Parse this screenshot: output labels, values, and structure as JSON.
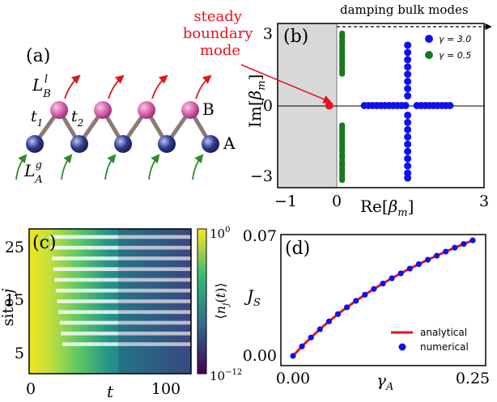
{
  "colors": {
    "red": "#e8121c",
    "blue": "#1010ee",
    "green": "#1a7a1a",
    "pink": "#d45aa8",
    "navy": "#2f3a8f",
    "bond": "#8a7b74",
    "arrow_red": "#d81b1b",
    "arrow_green": "#2e8b2e",
    "shade": "#d8d8d8"
  },
  "panel_a": {
    "label": "(a)",
    "loss_label": "L",
    "loss_sub": "B",
    "loss_sup": "l",
    "gain_label": "L",
    "gain_sub": "A",
    "gain_sup": "g",
    "t1_main": "t",
    "t1_sub": "1",
    "t2_main": "t",
    "t2_sub": "2",
    "site_b": "B",
    "site_a": "A"
  },
  "chart_data": [
    {
      "id": "b",
      "type": "scatter",
      "panel_label": "(b)",
      "xlabel": "Re[βm]",
      "ylabel": "Im[βm]",
      "xlim": [
        -1,
        3
      ],
      "ylim": [
        -3.4,
        3.4
      ],
      "xticks": [
        "−1",
        "0",
        "3"
      ],
      "yticks": [
        "3",
        "0",
        "−3"
      ],
      "legend": "top-right",
      "series": [
        {
          "name": "γ = 3.0",
          "color": "#1010ee",
          "points": [
            [
              0.68,
              0.0
            ],
            [
              0.76,
              0.0
            ],
            [
              0.84,
              0.0
            ],
            [
              0.92,
              0.0
            ],
            [
              1.0,
              0.0
            ],
            [
              1.08,
              0.0
            ],
            [
              1.16,
              0.0
            ],
            [
              1.24,
              0.0
            ],
            [
              1.32,
              0.0
            ],
            [
              1.4,
              0.0
            ],
            [
              1.48,
              0.0
            ],
            [
              1.7,
              0.0
            ],
            [
              1.78,
              0.0
            ],
            [
              1.86,
              0.0
            ],
            [
              1.94,
              0.0
            ],
            [
              2.02,
              0.0
            ],
            [
              2.1,
              0.0
            ],
            [
              2.18,
              0.0
            ],
            [
              2.26,
              0.0
            ],
            [
              2.34,
              0.0
            ],
            [
              1.52,
              2.5
            ],
            [
              1.52,
              2.2
            ],
            [
              1.52,
              1.9
            ],
            [
              1.52,
              1.6
            ],
            [
              1.52,
              1.3
            ],
            [
              1.52,
              1.0
            ],
            [
              1.52,
              0.7
            ],
            [
              1.52,
              0.4
            ],
            [
              1.52,
              -0.4
            ],
            [
              1.52,
              -0.7
            ],
            [
              1.52,
              -1.0
            ],
            [
              1.52,
              -1.3
            ],
            [
              1.52,
              -1.6
            ],
            [
              1.52,
              -1.9
            ],
            [
              1.52,
              -2.2
            ],
            [
              1.52,
              -2.5
            ],
            [
              1.52,
              -2.8
            ],
            [
              1.52,
              -3.0
            ]
          ]
        },
        {
          "name": "γ = 0.5",
          "color": "#1a7a1a",
          "points": [
            [
              0.25,
              2.9
            ],
            [
              0.25,
              2.6
            ],
            [
              0.25,
              2.3
            ],
            [
              0.25,
              2.0
            ],
            [
              0.25,
              1.7
            ],
            [
              0.25,
              1.4
            ],
            [
              0.25,
              -0.9
            ],
            [
              0.25,
              -1.2
            ],
            [
              0.25,
              -1.5
            ],
            [
              0.25,
              -1.8
            ],
            [
              0.25,
              -2.1
            ],
            [
              0.25,
              -2.4
            ],
            [
              0.25,
              -2.7
            ],
            [
              0.25,
              -3.0
            ]
          ]
        }
      ],
      "steady_point": [
        0.0,
        0.0
      ],
      "annotations": {
        "steady": [
          "steady",
          "boundary",
          "mode"
        ],
        "damping": "damping bulk modes"
      }
    },
    {
      "id": "c",
      "type": "heatmap",
      "panel_label": "(c)",
      "xlabel": "t",
      "ylabel": "site j",
      "xticks": [
        "0",
        "100"
      ],
      "yticks": [
        "25",
        "15",
        "5"
      ],
      "x_range": [
        0,
        120
      ],
      "y_range": [
        1,
        27
      ],
      "colorbar_label": "⟨nj(t)⟩",
      "colorbar_ticks": [
        "10^0",
        "10^-12"
      ],
      "colormap": [
        "#440154",
        "#31688e",
        "#35b779",
        "#fde725"
      ]
    },
    {
      "id": "d",
      "type": "line",
      "panel_label": "(d)",
      "xlabel": "γA",
      "ylabel": "JS",
      "xlim": [
        0.0,
        0.25
      ],
      "ylim": [
        0.0,
        0.07
      ],
      "xticks": [
        "0.00",
        "0.25"
      ],
      "yticks": [
        "0.07",
        "0.00"
      ],
      "legend": "bottom-right",
      "series": [
        {
          "name": "analytical",
          "color": "#e8121c",
          "x": [
            0.0,
            0.0125,
            0.025,
            0.0375,
            0.05,
            0.0625,
            0.075,
            0.0875,
            0.1,
            0.1125,
            0.125,
            0.1375,
            0.15,
            0.1625,
            0.175,
            0.1875,
            0.2,
            0.2125,
            0.225,
            0.2375,
            0.25
          ],
          "y": [
            0.0,
            0.0056,
            0.0108,
            0.0157,
            0.0203,
            0.0246,
            0.0286,
            0.0324,
            0.036,
            0.0394,
            0.0426,
            0.0457,
            0.0486,
            0.0514,
            0.054,
            0.0566,
            0.059,
            0.0614,
            0.0637,
            0.0659,
            0.068
          ]
        },
        {
          "name": "numerical",
          "color": "#1010ee",
          "x": [
            0.0,
            0.0125,
            0.025,
            0.0375,
            0.05,
            0.0625,
            0.075,
            0.0875,
            0.1,
            0.1125,
            0.125,
            0.1375,
            0.15,
            0.1625,
            0.175,
            0.1875,
            0.2,
            0.2125,
            0.225,
            0.2375,
            0.25
          ],
          "y": [
            0.0,
            0.0056,
            0.0108,
            0.0157,
            0.0203,
            0.0246,
            0.0286,
            0.0324,
            0.036,
            0.0394,
            0.0426,
            0.0457,
            0.0486,
            0.0514,
            0.054,
            0.0566,
            0.059,
            0.0614,
            0.0637,
            0.0659,
            0.068
          ]
        }
      ]
    }
  ]
}
